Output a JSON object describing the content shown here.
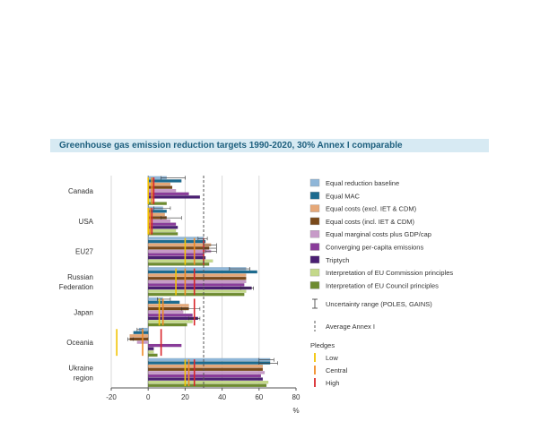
{
  "chart_data": {
    "type": "bar",
    "orientation": "horizontal",
    "title": "Greenhouse gas emission reduction targets 1990-2020, 30% Annex I comparable",
    "xlabel": "%",
    "xlim": [
      -20,
      80
    ],
    "xticks": [
      "-20",
      "0",
      "20",
      "40",
      "60",
      "80"
    ],
    "grid": true,
    "legend_position": "right",
    "categories": [
      "Canada",
      "USA",
      "EU27",
      "Russian Federation",
      "Japan",
      "Oceania",
      "Ukraine region"
    ],
    "category_label_lines": [
      [
        "Canada"
      ],
      [
        "USA"
      ],
      [
        "EU27"
      ],
      [
        "Russian",
        "Federation"
      ],
      [
        "Japan"
      ],
      [
        "Oceania"
      ],
      [
        "Ukraine",
        "region"
      ]
    ],
    "series": [
      {
        "name": "Equal reduction baseline",
        "color": "#8fb6d8",
        "values": [
          10,
          8,
          30,
          53,
          8,
          -5,
          66
        ],
        "error": [
          [
            7,
            20
          ],
          [
            3,
            12
          ],
          [
            27,
            32
          ],
          [
            44,
            55
          ],
          [
            5,
            12
          ],
          [
            -6,
            -3
          ],
          [
            60,
            68
          ]
        ]
      },
      {
        "name": "Equal MAC",
        "color": "#1d6b8f",
        "values": [
          18,
          10,
          31,
          59,
          17,
          -8,
          66
        ],
        "error": [
          null,
          null,
          null,
          null,
          null,
          null,
          [
            60,
            70
          ]
        ]
      },
      {
        "name": "Equal costs (excl. IET & CDM)",
        "color": "#e6a878",
        "values": [
          12,
          9,
          34,
          53,
          22,
          -10,
          62
        ],
        "error": [
          null,
          null,
          [
            30,
            37
          ],
          null,
          null,
          null,
          null
        ]
      },
      {
        "name": "Equal costs (incl. IET & CDM)",
        "color": "#7a4a1a",
        "values": [
          13,
          10,
          33,
          53,
          22,
          -10,
          62
        ],
        "error": [
          null,
          [
            7,
            18
          ],
          [
            30,
            37
          ],
          null,
          [
            18,
            28
          ],
          [
            -11,
            -8
          ],
          null
        ]
      },
      {
        "name": "Equal marginal costs plus GDP/cap",
        "color": "#c79ac8",
        "values": [
          15,
          12,
          34,
          53,
          19,
          -6,
          63
        ],
        "error": [
          null,
          null,
          [
            31,
            37
          ],
          null,
          null,
          null,
          null
        ]
      },
      {
        "name": "Converging per-capita emissions",
        "color": "#8a3c9a",
        "values": [
          22,
          15,
          30,
          52,
          24,
          18,
          61
        ],
        "error": [
          null,
          null,
          null,
          null,
          null,
          null,
          null
        ]
      },
      {
        "name": "Triptych",
        "color": "#4a1f72",
        "values": [
          28,
          16,
          31,
          56,
          27,
          3,
          62
        ],
        "error": [
          null,
          null,
          null,
          [
            50,
            57
          ],
          [
            22,
            28
          ],
          null,
          null
        ]
      },
      {
        "name": "Interpretation of EU Commission principles",
        "color": "#c4d98a",
        "values": [
          2,
          15,
          35,
          53,
          24,
          3,
          65
        ],
        "error": [
          null,
          null,
          null,
          null,
          null,
          null,
          null
        ]
      },
      {
        "name": "Interpretation of EU Council principles",
        "color": "#6e8c30",
        "values": [
          10,
          16,
          33,
          52,
          21,
          5,
          64
        ],
        "error": [
          null,
          null,
          null,
          null,
          null,
          null,
          null
        ]
      }
    ],
    "uncertainty_range_label": "Uncertainty range (POLES, GAINS)",
    "average_annex_label": "Average Annex I",
    "average_annex_value": 30,
    "pledges": {
      "title": "Pledges",
      "items": [
        {
          "name": "Low",
          "color": "#f2c300",
          "values": [
            0,
            0,
            20,
            15,
            6,
            -17,
            20
          ]
        },
        {
          "name": "Central",
          "color": "#f08a24",
          "values": [
            2,
            1,
            25,
            20,
            8,
            -3,
            22
          ]
        },
        {
          "name": "High",
          "color": "#d9262b",
          "values": [
            3,
            2,
            30,
            25,
            25,
            7,
            25
          ]
        }
      ]
    }
  }
}
